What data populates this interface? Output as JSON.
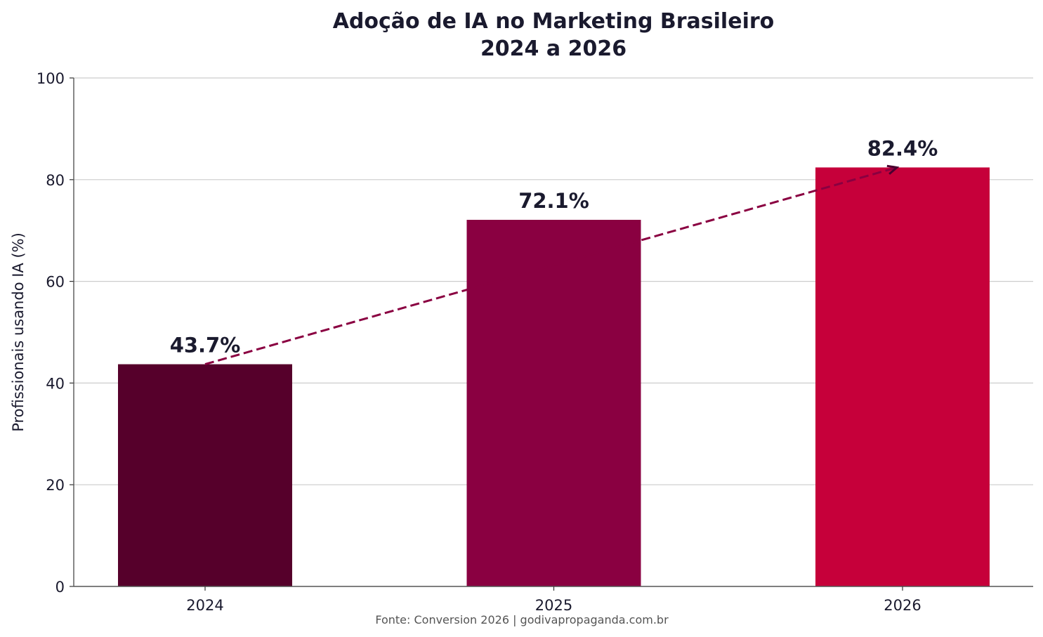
{
  "chart_data": {
    "type": "bar",
    "title": [
      "Adoção de IA no Marketing Brasileiro",
      "2024 a 2026"
    ],
    "xlabel": "",
    "ylabel": "Profissionais usando IA (%)",
    "categories": [
      "2024",
      "2025",
      "2026"
    ],
    "values": [
      43.7,
      72.1,
      82.4
    ],
    "value_labels": [
      "43.7%",
      "72.1%",
      "82.4%"
    ],
    "bar_colors": [
      "#56002b",
      "#8a0041",
      "#c6003a"
    ],
    "ylim": [
      0,
      100
    ],
    "yticks": [
      0,
      20,
      40,
      60,
      80,
      100
    ],
    "grid": "horizontal",
    "trend_arrow": {
      "from": 0,
      "to": 2,
      "color": "#8a0041",
      "style": "dashed"
    },
    "source": "Fonte: Conversion 2026 | godivapropaganda.com.br"
  }
}
